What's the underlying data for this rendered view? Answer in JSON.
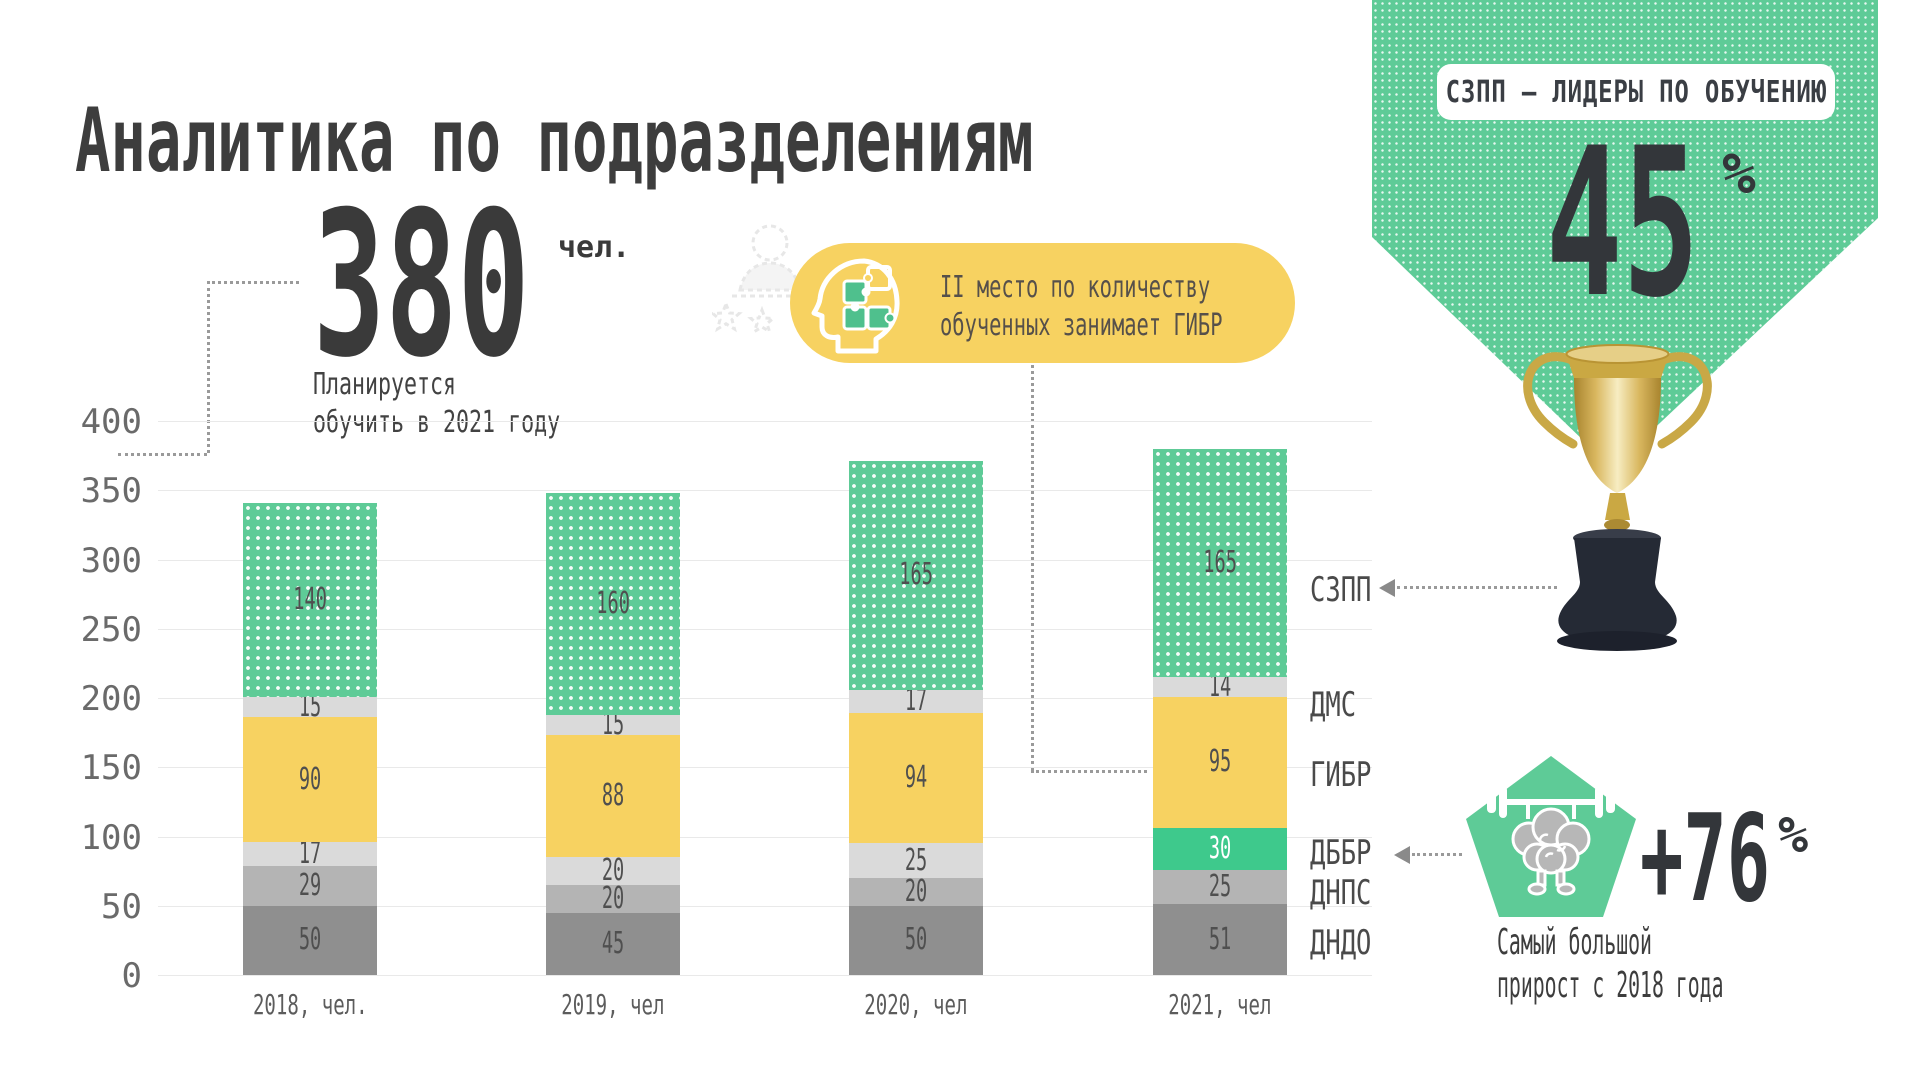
{
  "title": "Аналитика по подразделениям",
  "planned": {
    "value": "380",
    "unit": "чел.",
    "caption_line1": "Планируется",
    "caption_line2": "обучить в 2021 году"
  },
  "callout": {
    "icon": "head-puzzle-icon",
    "line1": "II место по количеству",
    "line2": "обученных занимает ГИБР"
  },
  "leader_banner": {
    "pill_label": "СЗПП – ЛИДЕРЫ ПО ОБУЧЕНИЮ",
    "value": "45",
    "unit": "%",
    "icon": "trophy-photo"
  },
  "growth_badge": {
    "icon": "brain-barbell-pentagon-icon",
    "value": "+76",
    "unit": "%",
    "caption_line1": "Самый большой",
    "caption_line2": "прирост с 2018 года"
  },
  "colors": {
    "green_pattern": "#5ecb97",
    "green_highlight": "#3ec98c",
    "yellow": "#f7d261",
    "light_gray": "#dadada",
    "medium_gray": "#b4b4b4",
    "dark_gray": "#8f8f8f",
    "ink": "#3d3d3d"
  },
  "chart_data": {
    "type": "bar",
    "stacked": true,
    "categories": [
      "2018, чел.",
      "2019, чел",
      "2020, чел",
      "2021, чел"
    ],
    "series": [
      {
        "name": "ДНДО",
        "color": "#8f8f8f",
        "values": [
          50,
          45,
          50,
          51
        ]
      },
      {
        "name": "ДНПС",
        "color": "#b4b4b4",
        "values": [
          29,
          20,
          20,
          25
        ]
      },
      {
        "name": "ДББР",
        "color": "#dadada",
        "values": [
          17,
          20,
          25,
          30
        ],
        "highlight": {
          "index": 3,
          "color": "#3ec98c",
          "label_color": "#ffffff"
        }
      },
      {
        "name": "ГИБР",
        "color": "#f7d261",
        "values": [
          90,
          88,
          94,
          95
        ]
      },
      {
        "name": "ДМС",
        "color": "#dadada",
        "values": [
          15,
          15,
          17,
          14
        ]
      },
      {
        "name": "СЗПП",
        "color": "#5ecb97",
        "pattern": "white-dots",
        "values": [
          140,
          160,
          165,
          165
        ]
      }
    ],
    "totals": [
      341,
      348,
      371,
      380
    ],
    "ylim": [
      0,
      400
    ],
    "yticks": [
      0,
      50,
      100,
      150,
      200,
      250,
      300,
      350,
      400
    ],
    "grid": true,
    "value_labels": true,
    "series_labels_position": "right-of-last-bar"
  }
}
